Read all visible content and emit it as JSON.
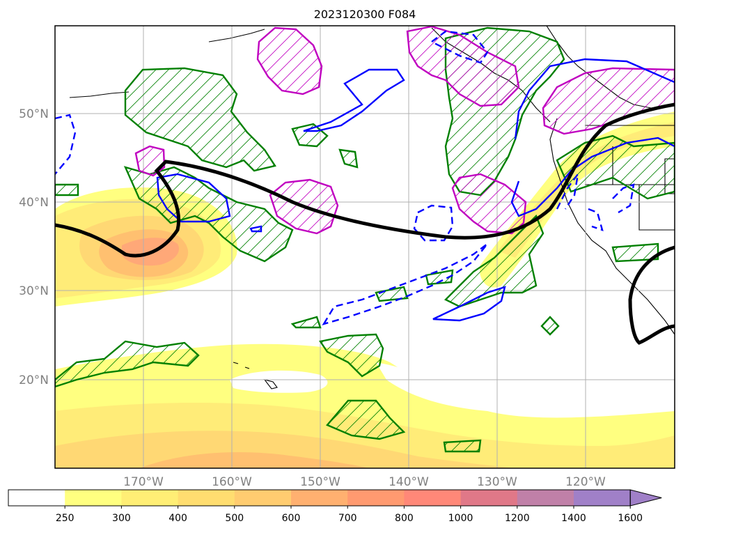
{
  "title": "2023120300 F084",
  "map": {
    "lat_labels": [
      "50°N",
      "40°N",
      "30°N",
      "20°N"
    ],
    "lon_labels": [
      "170°W",
      "160°W",
      "150°W",
      "140°W",
      "130°W",
      "120°W"
    ],
    "lat_values": [
      50,
      40,
      30,
      20
    ],
    "lon_values": [
      -170,
      -160,
      -150,
      -140,
      -130,
      -120
    ],
    "extent": {
      "lon_min": -180,
      "lon_max": -110,
      "lat_min": 10,
      "lat_max": 60
    }
  },
  "colorbar": {
    "ticks": [
      "250",
      "300",
      "400",
      "500",
      "600",
      "700",
      "800",
      "1000",
      "1200",
      "1400",
      "1600"
    ],
    "colors": [
      "#ffffff",
      "#ffff80",
      "#ffee75",
      "#ffdd70",
      "#ffcc70",
      "#ffb070",
      "#ff9a70",
      "#ff8878",
      "#e07888",
      "#c080a8",
      "#a080c8"
    ],
    "extend": "max"
  },
  "fill_colors": {
    "level1": "#ffff80",
    "level2": "#ffec78",
    "level3": "#ffd874",
    "level4": "#ffc070",
    "level5": "#ffa878",
    "level6": "#ff9070"
  },
  "contour_colors": {
    "jet": "#000000",
    "green": "#008000",
    "blue": "#0000ff",
    "magenta": "#c000c0"
  }
}
